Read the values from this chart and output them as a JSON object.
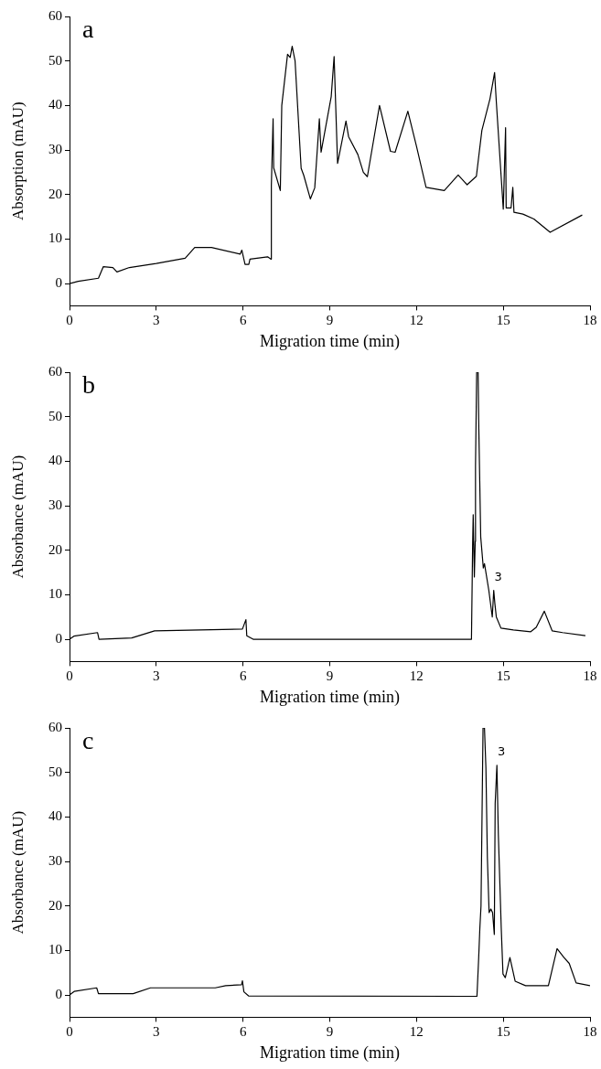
{
  "chart_data": [
    {
      "type": "line",
      "title": "a",
      "xlabel": "Migration time (min)",
      "ylabel": "Absorption (mAU)",
      "xlim": [
        0,
        18
      ],
      "xticks": [
        0,
        3,
        6,
        9,
        12,
        15,
        18
      ],
      "ylim": [
        -5,
        60
      ],
      "yticks": [
        0,
        10,
        20,
        30,
        40,
        50,
        60
      ],
      "grid": false,
      "legend": false,
      "marker": "none",
      "line_style": "solid",
      "series": [
        {
          "color": "#000000",
          "x": [
            0,
            0.3,
            1.0,
            1.17,
            1.5,
            1.64,
            2.07,
            3.0,
            4.0,
            4.33,
            4.91,
            5.9,
            5.96,
            6.07,
            6.2,
            6.24,
            6.85,
            6.96,
            6.98,
            7.04,
            7.06,
            7.29,
            7.34,
            7.54,
            7.63,
            7.7,
            7.8,
            8.01,
            8.1,
            8.33,
            8.48,
            8.64,
            8.7,
            9.05,
            9.15,
            9.27,
            9.56,
            9.65,
            9.97,
            10.16,
            10.3,
            10.72,
            11.1,
            11.26,
            11.7,
            12.0,
            12.33,
            12.96,
            13.44,
            13.75,
            14.07,
            14.26,
            14.54,
            14.7,
            14.76,
            15.0,
            15.08,
            15.1,
            15.27,
            15.33,
            15.37,
            15.68,
            16.06,
            16.62,
            17.73
          ],
          "values": [
            0,
            0.5,
            1.2,
            3.8,
            3.6,
            2.6,
            3.6,
            4.5,
            5.7,
            8.1,
            8.1,
            6.6,
            7.5,
            4.3,
            4.3,
            5.5,
            6,
            5.5,
            22,
            37,
            26,
            20.9,
            40,
            51.5,
            50.8,
            53.3,
            50,
            25.9,
            24.3,
            19,
            21.5,
            37,
            29.5,
            42,
            51,
            27,
            36.5,
            33,
            29,
            25,
            24,
            40,
            29.7,
            29.5,
            38.7,
            30.8,
            21.6,
            20.9,
            24.4,
            22.2,
            24.1,
            34.4,
            41.5,
            47.4,
            40.8,
            16.7,
            35,
            17,
            17,
            21.6,
            16,
            15.6,
            14.5,
            11.5,
            15.4
          ]
        }
      ]
    },
    {
      "type": "line",
      "title": "b",
      "xlabel": "Migration time (min)",
      "ylabel": "Absorbance (mAU)",
      "xlim": [
        0,
        18
      ],
      "xticks": [
        0,
        3,
        6,
        9,
        12,
        15,
        18
      ],
      "ylim": [
        -5,
        60
      ],
      "yticks": [
        0,
        10,
        20,
        30,
        40,
        50,
        60
      ],
      "grid": false,
      "legend": false,
      "marker": "none",
      "line_style": "solid",
      "annotations": [
        {
          "text": "3",
          "x": 14.67,
          "y": 11
        }
      ],
      "series": [
        {
          "color": "#000000",
          "x": [
            0,
            0.15,
            0.97,
            1.02,
            2.15,
            2.94,
            5.98,
            6.1,
            6.13,
            6.35,
            13.9,
            13.94,
            13.96,
            14.0,
            14.03,
            14.04,
            14.08,
            14.13,
            14.15,
            14.22,
            14.31,
            14.35,
            14.5,
            14.62,
            14.67,
            14.71,
            14.76,
            14.92,
            15.35,
            15.95,
            16.14,
            16.42,
            16.69,
            17.05,
            17.84
          ],
          "values": [
            0,
            0.7,
            1.5,
            0,
            0.3,
            1.9,
            2.3,
            4.4,
            0.8,
            0,
            0,
            21,
            28,
            14,
            22,
            39,
            60,
            60,
            49,
            23,
            16,
            17,
            11,
            5,
            11,
            8,
            5,
            2.5,
            2.1,
            1.7,
            2.7,
            6.3,
            1.9,
            1.5,
            0.8
          ]
        }
      ]
    },
    {
      "type": "line",
      "title": "c",
      "xlabel": "Migration time (min)",
      "ylabel": "Absorbance (mAU)",
      "xlim": [
        0,
        18
      ],
      "xticks": [
        0,
        3,
        6,
        9,
        12,
        15,
        18
      ],
      "ylim": [
        -5,
        60
      ],
      "yticks": [
        0,
        10,
        20,
        30,
        40,
        50,
        60
      ],
      "grid": false,
      "legend": false,
      "marker": "none",
      "line_style": "solid",
      "annotations": [
        {
          "text": "3",
          "x": 14.78,
          "y": 51.6
        }
      ],
      "series": [
        {
          "color": "#000000",
          "x": [
            0,
            0.16,
            0.94,
            1.0,
            2.2,
            2.8,
            5.04,
            5.4,
            5.95,
            5.98,
            6.03,
            6.19,
            14.09,
            14.15,
            14.19,
            14.23,
            14.3,
            14.35,
            14.4,
            14.45,
            14.51,
            14.57,
            14.63,
            14.69,
            14.72,
            14.78,
            14.83,
            14.93,
            14.99,
            15.07,
            15.23,
            15.41,
            15.77,
            16.56,
            16.86,
            17.1,
            17.28,
            17.52,
            18.0
          ],
          "values": [
            0,
            0.8,
            1.6,
            0.3,
            0.3,
            1.6,
            1.6,
            2.1,
            2.3,
            3.2,
            0.7,
            -0.2,
            -0.3,
            8.4,
            15,
            20,
            60,
            60,
            51,
            31,
            18.5,
            19.3,
            18.5,
            13.6,
            43,
            51.6,
            36,
            15,
            4.7,
            3.9,
            8.4,
            3.1,
            2.1,
            2.1,
            10.4,
            8.4,
            7.1,
            2.7,
            2.1
          ]
        }
      ]
    }
  ]
}
